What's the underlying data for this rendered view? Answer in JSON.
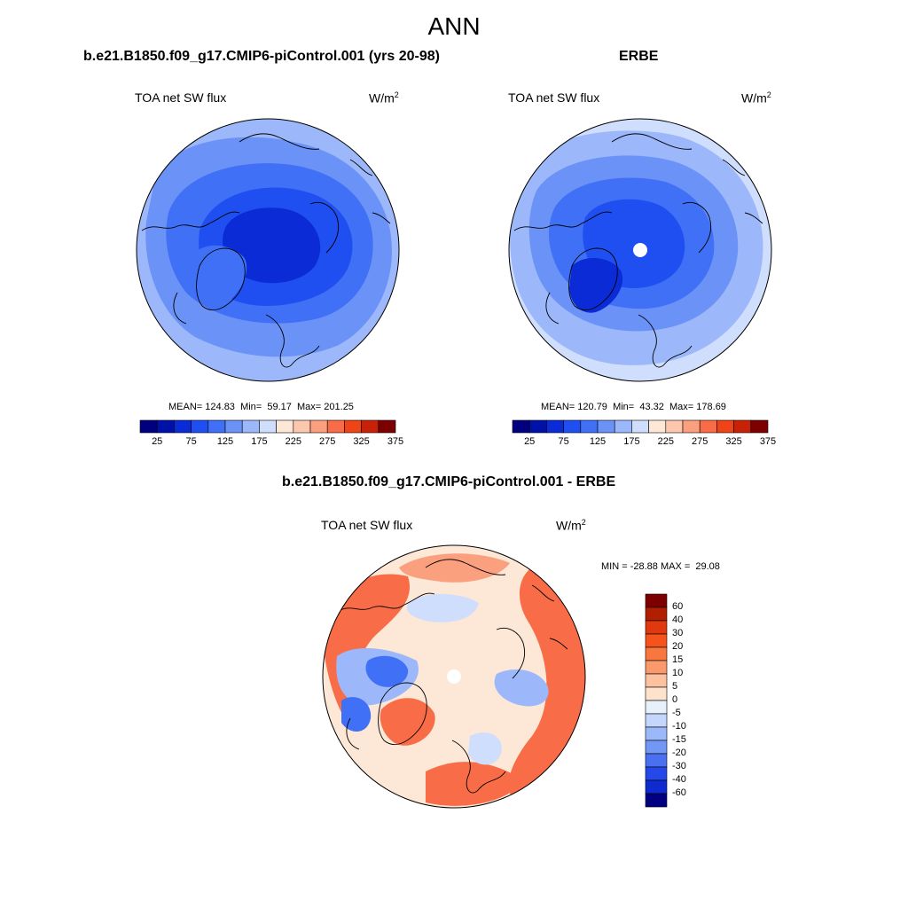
{
  "figure": {
    "title": "ANN",
    "panel_left": {
      "title": "b.e21.B1850.f09_g17.CMIP6-piControl.001 (yrs 20-98)",
      "variable": "TOA net SW flux",
      "unit_base": "W/m",
      "unit_exp": "2",
      "stats": {
        "mean_label": "MEAN=",
        "mean": "124.83",
        "min_label": "Min=",
        "min": "59.17",
        "max_label": "Max=",
        "max": "201.25"
      }
    },
    "panel_right": {
      "title": "ERBE",
      "variable": "TOA net SW flux",
      "unit_base": "W/m",
      "unit_exp": "2",
      "stats": {
        "mean_label": "MEAN=",
        "mean": "120.79",
        "min_label": "Min=",
        "min": "43.32",
        "max_label": "Max=",
        "max": "178.69"
      }
    },
    "panel_diff": {
      "title": "b.e21.B1850.f09_g17.CMIP6-piControl.001 - ERBE",
      "variable": "TOA net SW flux",
      "unit_base": "W/m",
      "unit_exp": "2",
      "range_text": "MIN = -28.88 MAX =  29.08"
    },
    "colorbar_abs": {
      "colors": [
        "#00007f",
        "#0011a8",
        "#0a2bd6",
        "#1f4ff0",
        "#3f70f5",
        "#6b92f7",
        "#9cb8fa",
        "#cfdefc",
        "#fde7d6",
        "#fcc7ae",
        "#fba07f",
        "#f86d47",
        "#ee4417",
        "#c72208",
        "#7d0000"
      ],
      "ticks": [
        "25",
        "75",
        "125",
        "175",
        "225",
        "275",
        "325",
        "375"
      ]
    },
    "colorbar_diff": {
      "colors": [
        "#7d0000",
        "#b11f00",
        "#e0390f",
        "#f6521c",
        "#f8773f",
        "#fa9a6c",
        "#fcc1a0",
        "#fde2cc",
        "#e8f0fc",
        "#c4d6fb",
        "#9bb8f9",
        "#7397f5",
        "#4a6ff0",
        "#2449e8",
        "#0f2bcf",
        "#000080"
      ],
      "ticks": [
        "60",
        "40",
        "30",
        "20",
        "15",
        "10",
        "5",
        "0",
        "-5",
        "-10",
        "-15",
        "-20",
        "-30",
        "-40",
        "-60"
      ]
    },
    "map_colors": {
      "ocean_light": "#9cb8fa",
      "mid": "#6b92f7",
      "deep": "#3f70f5",
      "arctic": "#1f4ff0",
      "core": "#0a2bd6",
      "diff_neutral": "#fde7d6",
      "diff_warm": "#f86d47",
      "diff_warm_light": "#fba07f",
      "diff_cool": "#9cb8fa",
      "diff_cool_dark": "#3f70f5"
    }
  }
}
